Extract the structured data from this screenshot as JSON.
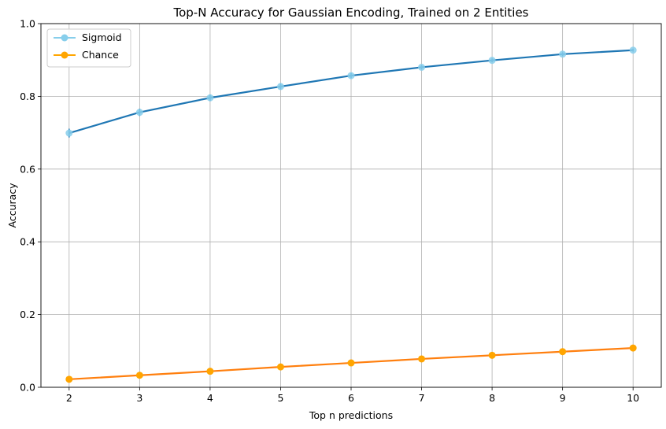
{
  "chart_data": {
    "type": "line",
    "title": "Top-N Accuracy for Gaussian Encoding, Trained on 2 Entities",
    "xlabel": "Top n predictions",
    "ylabel": "Accuracy",
    "x": [
      2,
      3,
      4,
      5,
      6,
      7,
      8,
      9,
      10
    ],
    "xlim": [
      1.6,
      10.4
    ],
    "ylim": [
      0.0,
      1.0
    ],
    "xticks": [
      "2",
      "3",
      "4",
      "5",
      "6",
      "7",
      "8",
      "9",
      "10"
    ],
    "yticks": [
      "0.0",
      "0.2",
      "0.4",
      "0.6",
      "0.8",
      "1.0"
    ],
    "grid": true,
    "legend": "top-left",
    "series": [
      {
        "name": "Sigmoid",
        "line_color": "#1f77b4",
        "marker_color": "#87ceeb",
        "values": [
          0.699,
          0.756,
          0.796,
          0.827,
          0.857,
          0.88,
          0.899,
          0.916,
          0.927
        ],
        "error": [
          0.012,
          0.01,
          0.009,
          0.008,
          0.007,
          0.006,
          0.005,
          0.005,
          0.004
        ]
      },
      {
        "name": "Chance",
        "line_color": "#ff7f0e",
        "marker_color": "#ffa500",
        "values": [
          0.022,
          0.033,
          0.044,
          0.056,
          0.067,
          0.078,
          0.088,
          0.098,
          0.108
        ]
      }
    ]
  }
}
